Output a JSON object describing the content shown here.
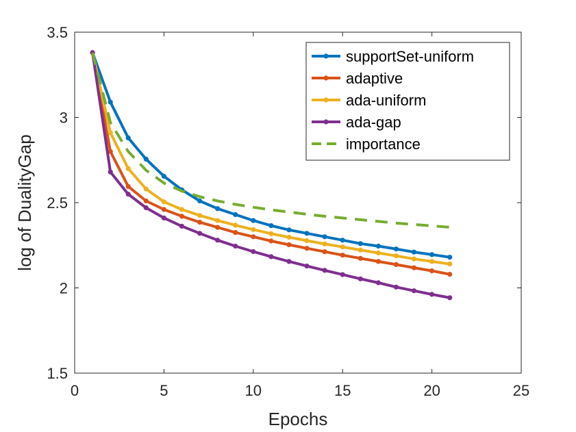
{
  "chart_data": {
    "type": "line",
    "title": "",
    "xlabel": "Epochs",
    "ylabel": "log of DualityGap",
    "xlim": [
      0,
      25
    ],
    "ylim": [
      1.5,
      3.5
    ],
    "xticks": [
      "0",
      "5",
      "10",
      "15",
      "20",
      "25"
    ],
    "yticks": [
      "1.5",
      "2",
      "2.5",
      "3",
      "3.5"
    ],
    "grid": false,
    "legend_position": "top-right",
    "series": [
      {
        "name": "supportSet-uniform",
        "color": "#0072BD",
        "style": "solid-markers",
        "x": [
          1,
          2,
          3,
          4,
          5,
          6,
          7,
          8,
          9,
          10,
          11,
          12,
          13,
          14,
          15,
          16,
          17,
          18,
          19,
          20,
          21
        ],
        "y": [
          3.38,
          3.09,
          2.88,
          2.755,
          2.655,
          2.575,
          2.51,
          2.465,
          2.43,
          2.395,
          2.365,
          2.34,
          2.32,
          2.3,
          2.28,
          2.26,
          2.245,
          2.228,
          2.21,
          2.195,
          2.18
        ]
      },
      {
        "name": "adaptive",
        "color": "#D95319",
        "style": "solid-markers",
        "x": [
          1,
          2,
          3,
          4,
          5,
          6,
          7,
          8,
          9,
          10,
          11,
          12,
          13,
          14,
          15,
          16,
          17,
          18,
          19,
          20,
          21
        ],
        "y": [
          3.38,
          2.8,
          2.595,
          2.51,
          2.46,
          2.42,
          2.385,
          2.355,
          2.325,
          2.3,
          2.275,
          2.253,
          2.232,
          2.212,
          2.192,
          2.173,
          2.155,
          2.137,
          2.118,
          2.1,
          2.08
        ]
      },
      {
        "name": "ada-uniform",
        "color": "#EDB120",
        "style": "solid-markers",
        "x": [
          1,
          2,
          3,
          4,
          5,
          6,
          7,
          8,
          9,
          10,
          11,
          12,
          13,
          14,
          15,
          16,
          17,
          18,
          19,
          20,
          21
        ],
        "y": [
          3.38,
          2.91,
          2.7,
          2.58,
          2.505,
          2.46,
          2.425,
          2.395,
          2.368,
          2.342,
          2.318,
          2.297,
          2.277,
          2.258,
          2.24,
          2.222,
          2.205,
          2.188,
          2.17,
          2.155,
          2.14
        ]
      },
      {
        "name": "ada-gap",
        "color": "#7E2F8E",
        "style": "solid-markers",
        "x": [
          1,
          2,
          3,
          4,
          5,
          6,
          7,
          8,
          9,
          10,
          11,
          12,
          13,
          14,
          15,
          16,
          17,
          18,
          19,
          20,
          21
        ],
        "y": [
          3.38,
          2.68,
          2.55,
          2.47,
          2.41,
          2.362,
          2.32,
          2.28,
          2.245,
          2.213,
          2.183,
          2.155,
          2.128,
          2.103,
          2.078,
          2.053,
          2.03,
          2.005,
          1.983,
          1.962,
          1.942
        ]
      },
      {
        "name": "importance",
        "color": "#77AC30",
        "style": "dashed",
        "x": [
          1,
          2,
          3,
          4,
          5,
          6,
          7,
          8,
          9,
          10,
          11,
          12,
          13,
          14,
          15,
          16,
          17,
          18,
          19,
          20,
          21
        ],
        "y": [
          3.38,
          2.97,
          2.8,
          2.69,
          2.615,
          2.568,
          2.535,
          2.51,
          2.49,
          2.473,
          2.458,
          2.445,
          2.432,
          2.42,
          2.41,
          2.4,
          2.39,
          2.38,
          2.372,
          2.364,
          2.356
        ]
      }
    ]
  }
}
